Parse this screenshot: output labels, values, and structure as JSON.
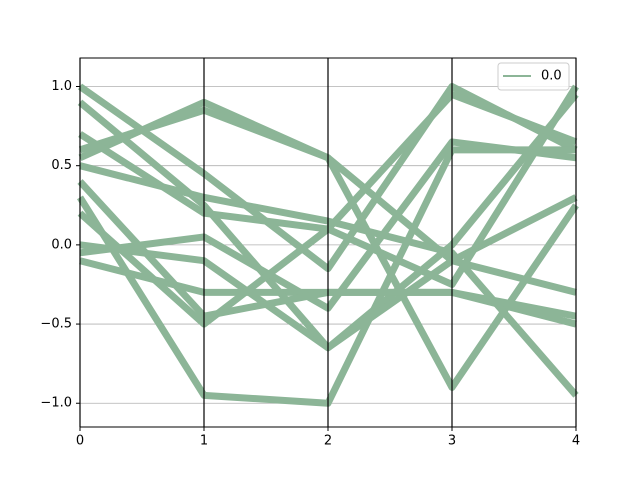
{
  "chart_data": {
    "type": "parallel",
    "x": [
      0,
      1,
      2,
      3,
      4
    ],
    "xlim": [
      0,
      4
    ],
    "xticks": [
      0,
      1,
      2,
      3,
      4
    ],
    "ylim": [
      -1.15,
      1.18
    ],
    "yticks": [
      {
        "value": -1,
        "label": "−1.0"
      },
      {
        "value": -0.5,
        "label": "−0.5"
      },
      {
        "value": 0,
        "label": "0.0"
      },
      0.5,
      {
        "value": 1,
        "label": "1.0"
      }
    ],
    "grid": true,
    "legend": "upper right",
    "series": [
      {
        "name": "0.0",
        "color": "#8cb597",
        "values": [
          [
            1.0,
            0.45,
            -0.15,
            1.0,
            0.6
          ],
          [
            0.55,
            0.9,
            0.55,
            -0.1,
            -0.3
          ],
          [
            0.6,
            0.85,
            0.55,
            -0.9,
            0.25
          ],
          [
            0.3,
            -0.95,
            -1.0,
            0.6,
            0.6
          ],
          [
            0.0,
            -0.1,
            -0.65,
            0.0,
            0.95
          ],
          [
            -0.1,
            -0.3,
            -0.3,
            -0.3,
            -0.5
          ],
          [
            0.9,
            0.25,
            -0.65,
            -0.1,
            0.3
          ],
          [
            0.5,
            0.3,
            0.15,
            -0.05,
            -0.95
          ],
          [
            -0.05,
            0.05,
            -0.4,
            0.65,
            0.55
          ],
          [
            0.7,
            0.2,
            0.1,
            -0.25,
            1.0
          ],
          [
            0.4,
            -0.45,
            -0.3,
            -0.3,
            -0.45
          ],
          [
            0.2,
            -0.5,
            0.1,
            0.95,
            0.65
          ]
        ]
      }
    ]
  }
}
